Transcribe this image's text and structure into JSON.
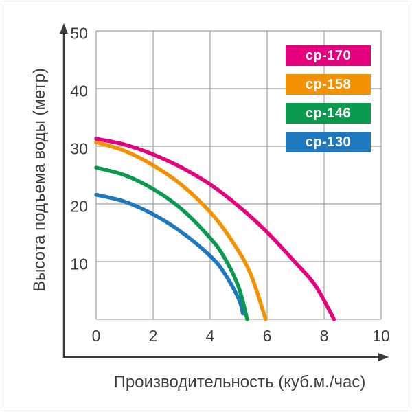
{
  "colors": {
    "grid": "#a0a0a0",
    "axis": "#3b3b3a",
    "text": "#3c3c3b",
    "frame": "#d9d9d9",
    "background": "#ffffff"
  },
  "chart_data": {
    "type": "line",
    "title": "",
    "xlabel": "Производительность (куб.м./час)",
    "ylabel": "Высота подъема воды (метр)",
    "xlim": [
      0,
      10
    ],
    "ylim": [
      0,
      50
    ],
    "xticks": [
      0,
      2,
      4,
      6,
      8,
      10
    ],
    "yticks": [
      10,
      20,
      30,
      40,
      50
    ],
    "grid_x": [
      0,
      2,
      4,
      6,
      8,
      10
    ],
    "grid_y": [
      0,
      10,
      20,
      30,
      40,
      50
    ],
    "grid": true,
    "legend_position": "top-right",
    "series": [
      {
        "name": "cp-170",
        "color": "#e5007e",
        "points": [
          [
            0,
            31.3
          ],
          [
            1,
            30.3
          ],
          [
            2,
            28.6
          ],
          [
            3,
            26.3
          ],
          [
            4,
            23.4
          ],
          [
            5,
            19.6
          ],
          [
            6,
            15.1
          ],
          [
            7,
            9.8
          ],
          [
            7.7,
            5.8
          ],
          [
            8.35,
            0
          ]
        ]
      },
      {
        "name": "cp-158",
        "color": "#f39200",
        "points": [
          [
            0,
            30.7
          ],
          [
            1,
            29.2
          ],
          [
            2,
            26.7
          ],
          [
            3,
            23.3
          ],
          [
            4,
            18.6
          ],
          [
            4.7,
            14.1
          ],
          [
            5.4,
            8.1
          ],
          [
            5.95,
            0
          ]
        ]
      },
      {
        "name": "cp-146",
        "color": "#0a9a4e",
        "points": [
          [
            0,
            26.3
          ],
          [
            1,
            25.0
          ],
          [
            2,
            22.6
          ],
          [
            3,
            19.1
          ],
          [
            4,
            14.1
          ],
          [
            4.5,
            10.7
          ],
          [
            5.0,
            5.6
          ],
          [
            5.3,
            0
          ]
        ]
      },
      {
        "name": "cp-130",
        "color": "#1d78be",
        "points": [
          [
            0,
            21.6
          ],
          [
            1,
            20.4
          ],
          [
            2,
            18.2
          ],
          [
            3,
            15.1
          ],
          [
            4,
            11.0
          ],
          [
            4.5,
            8.0
          ],
          [
            5.0,
            3.6
          ],
          [
            5.15,
            1.0
          ]
        ]
      }
    ]
  }
}
